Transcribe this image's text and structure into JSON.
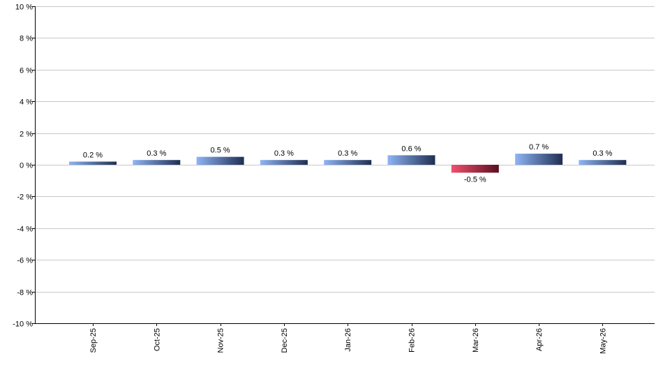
{
  "chart_data": {
    "type": "bar",
    "title": "",
    "xlabel": "",
    "ylabel": "",
    "categories": [
      "Sep-25",
      "Oct-25",
      "Nov-25",
      "Dec-25",
      "Jan-26",
      "Feb-26",
      "Mar-26",
      "Apr-26",
      "May-26"
    ],
    "values": [
      0.2,
      0.3,
      0.5,
      0.3,
      0.3,
      0.6,
      -0.5,
      0.7,
      0.3
    ],
    "data_labels": [
      "0.2 %",
      "0.3 %",
      "0.5 %",
      "0.3 %",
      "0.3 %",
      "0.6 %",
      "-0.5 %",
      "0.7 %",
      "0.3 %"
    ],
    "ylim": [
      -10,
      10
    ],
    "y_ticks": [
      10,
      8,
      6,
      4,
      2,
      0,
      -2,
      -4,
      -6,
      -8,
      -10
    ],
    "y_tick_labels": [
      "10 %",
      "8 %",
      "6 %",
      "4 %",
      "2 %",
      "0 %",
      "-2 %",
      "-4 %",
      "-6 %",
      "-8 %",
      "-10 %"
    ],
    "grid": true,
    "legend": "none",
    "colors": {
      "positive_light": "#8fb4f5",
      "positive_dark": "#1f2f52",
      "negative_light": "#f0506e",
      "negative_dark": "#5a1020",
      "grid": "#c8c8c8",
      "axis": "#000000"
    }
  }
}
